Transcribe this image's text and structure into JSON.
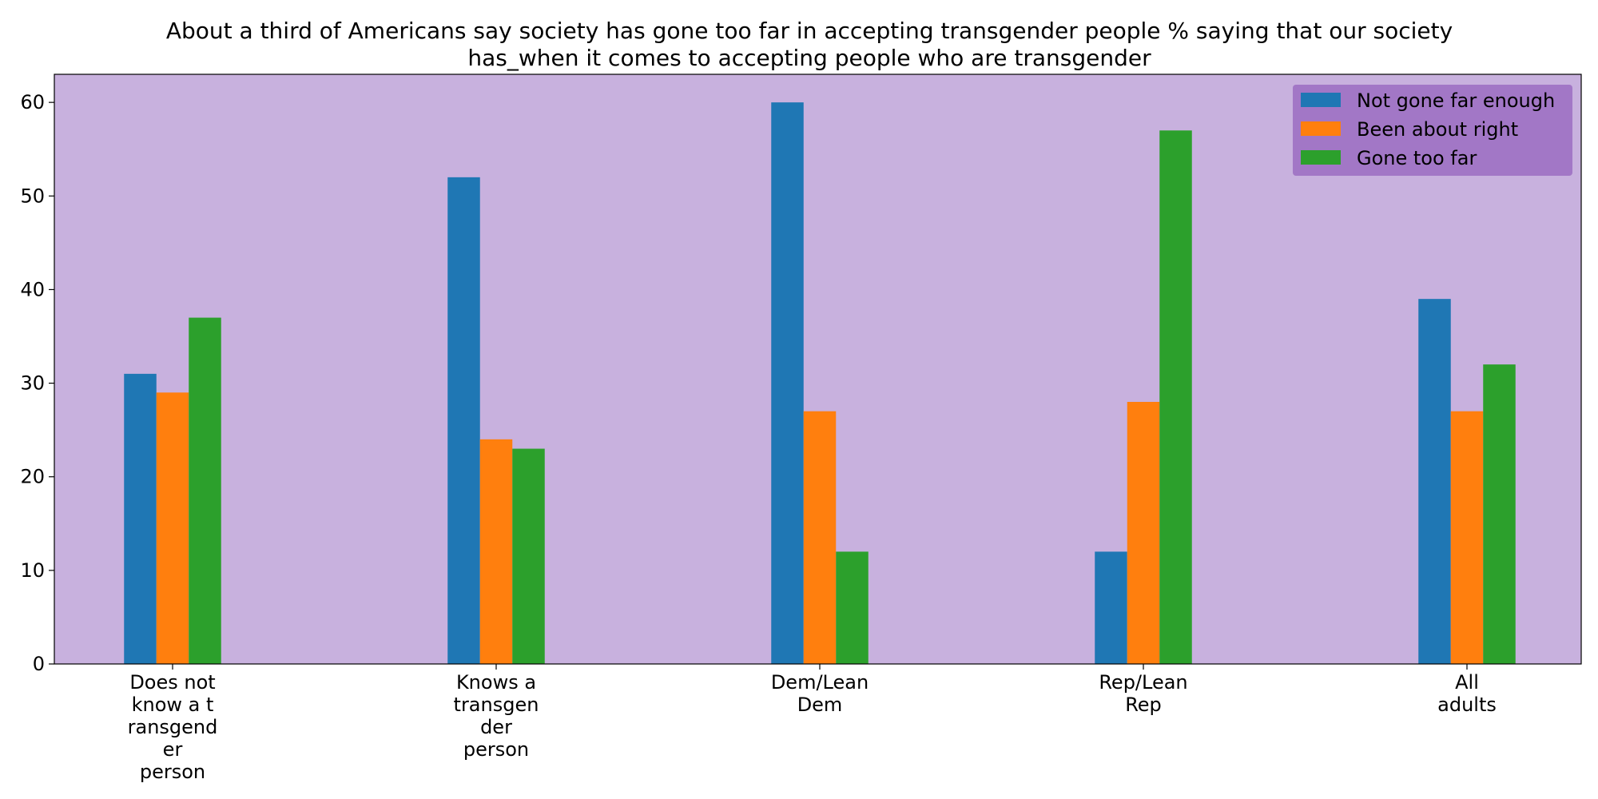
{
  "chart_data": {
    "type": "bar",
    "title": "About a third of Americans say society has gone too far in accepting transgender people % saying that our society\nhas_when it comes to accepting people who are transgender",
    "categories": [
      "Does not\nknow a t\nransgend\ner\nperson",
      "Knows a\ntransgen\nder\nperson",
      "Dem/Lean\nDem",
      "Rep/Lean\nRep",
      "All\nadults"
    ],
    "series": [
      {
        "name": "Not gone far enough",
        "color": "#1f77b4",
        "values": [
          31,
          52,
          60,
          12,
          39
        ]
      },
      {
        "name": "Been about right",
        "color": "#ff7f0e",
        "values": [
          29,
          24,
          27,
          28,
          27
        ]
      },
      {
        "name": "Gone too far",
        "color": "#2ca02c",
        "values": [
          37,
          23,
          12,
          57,
          32
        ]
      }
    ],
    "yticks": [
      0,
      10,
      20,
      30,
      40,
      50,
      60
    ],
    "ylim": [
      0,
      63
    ],
    "xlabel": "",
    "ylabel": "",
    "legend_position": "top-right",
    "plot_background": "#c8b1de",
    "legend_background": "#a277c6",
    "grid": false
  }
}
